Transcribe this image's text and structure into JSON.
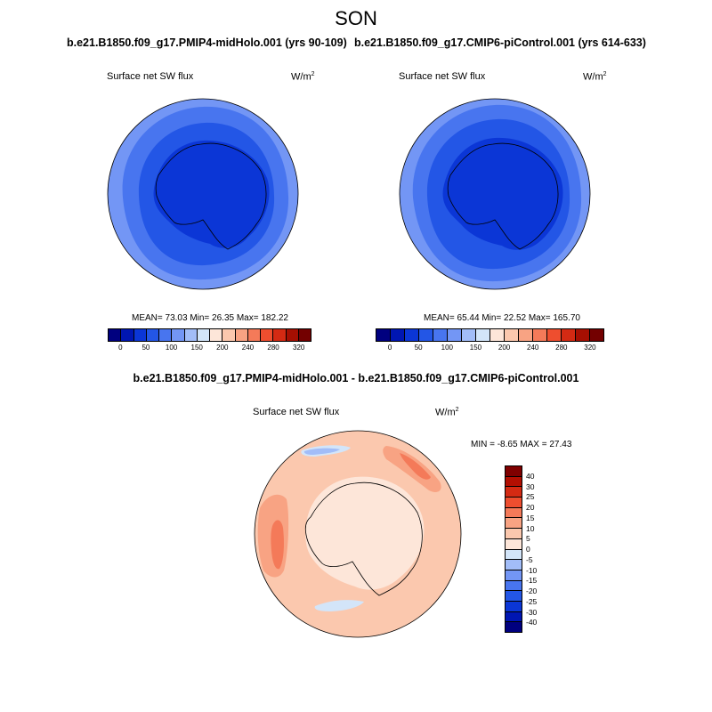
{
  "title": "SON",
  "panels": {
    "left": {
      "run": "b.e21.B1850.f09_g17.PMIP4-midHolo.001 (yrs 90-109)",
      "variable": "Surface net SW flux",
      "units_base": "W/m",
      "units_exp": "2",
      "stats": "MEAN= 73.03  Min= 26.35  Max= 182.22"
    },
    "right": {
      "run": "b.e21.B1850.f09_g17.CMIP6-piControl.001 (yrs 614-633)",
      "variable": "Surface net SW flux",
      "units_base": "W/m",
      "units_exp": "2",
      "stats": "MEAN= 65.44  Min= 22.52  Max= 165.70"
    },
    "diff": {
      "run": "b.e21.B1850.f09_g17.PMIP4-midHolo.001 - b.e21.B1850.f09_g17.CMIP6-piControl.001",
      "variable": "Surface net SW flux",
      "units_base": "W/m",
      "units_exp": "2",
      "stats": "MIN = -8.65 MAX = 27.43"
    }
  },
  "colorbar_abs": {
    "colors": [
      "#00007f",
      "#0016b2",
      "#0b36d6",
      "#2356e6",
      "#4875ef",
      "#7396f5",
      "#a2bdf8",
      "#d3e5f9",
      "#fde6d9",
      "#fbc8ae",
      "#f8a383",
      "#f47a59",
      "#ee4e2f",
      "#d42a13",
      "#a60f02",
      "#730000"
    ],
    "ticks": [
      "0",
      "50",
      "100",
      "150",
      "200",
      "240",
      "280",
      "320"
    ]
  },
  "colorbar_diff": {
    "colors": [
      "#7f0000",
      "#b20f02",
      "#d42a13",
      "#ee4e2f",
      "#f47a59",
      "#f8a383",
      "#fbc8ae",
      "#fde6d9",
      "#d3e5f9",
      "#a2bdf8",
      "#7396f5",
      "#4875ef",
      "#2356e6",
      "#0b36d6",
      "#0016b2",
      "#00007f"
    ],
    "ticks": [
      "40",
      "30",
      "25",
      "20",
      "15",
      "10",
      "5",
      "0",
      "-5",
      "-10",
      "-15",
      "-20",
      "-25",
      "-30",
      "-40"
    ]
  },
  "map_colors": {
    "abs_outer": "#7396f5",
    "abs_mid": "#4875ef",
    "abs_inner": "#2356e6",
    "abs_core": "#0b36d6",
    "diff_base": "#fbc8ae",
    "diff_light": "#fde6d9",
    "diff_strong": "#f8a383",
    "diff_max": "#f47a59",
    "diff_neg": "#d3e5f9",
    "diff_neg2": "#a2bdf8"
  },
  "maps": {
    "left": "map-left",
    "right": "map-right",
    "diff": "map-diff"
  }
}
